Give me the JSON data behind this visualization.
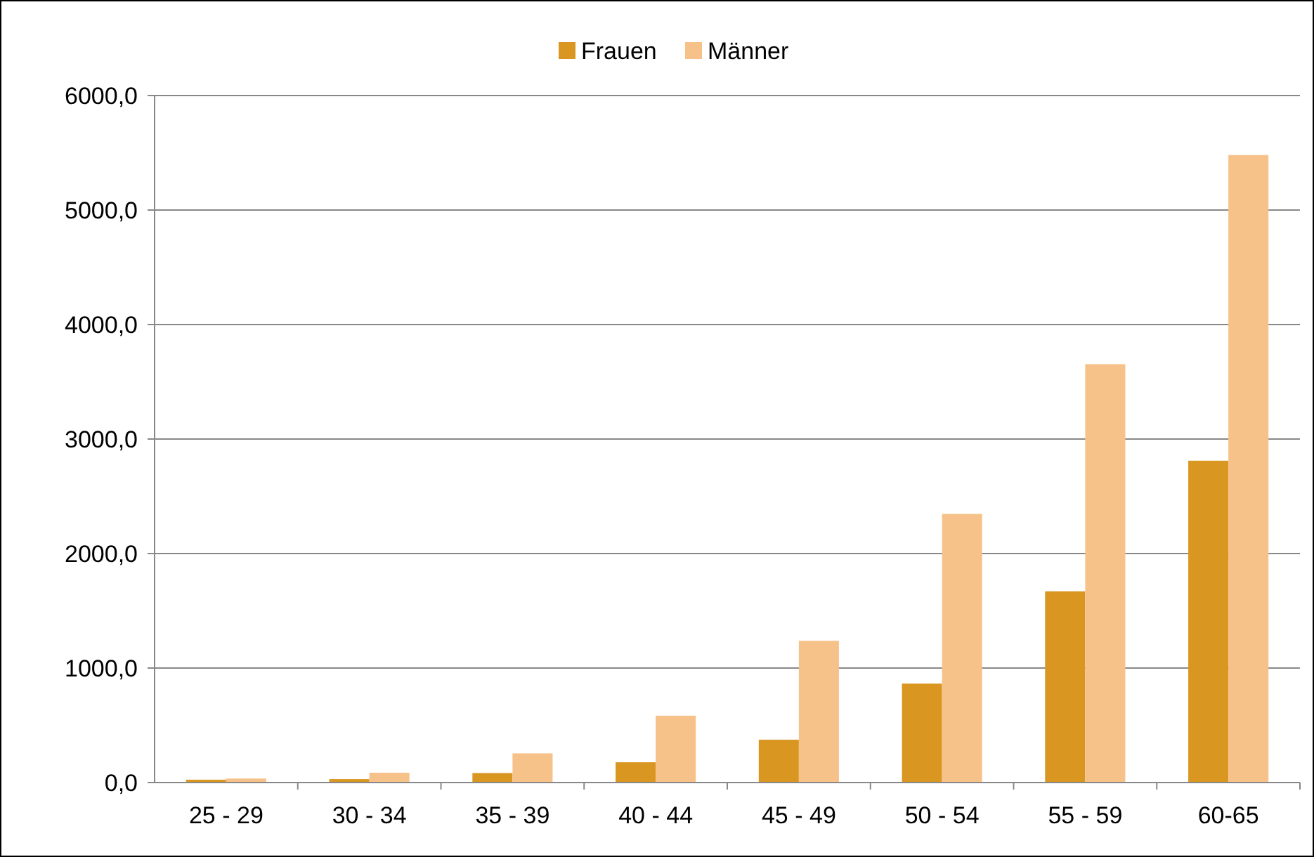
{
  "chart_data": {
    "type": "bar",
    "categories": [
      "25 - 29",
      "30 - 34",
      "35 - 39",
      "40 - 44",
      "45 - 49",
      "50 - 54",
      "55 - 59",
      "60-65"
    ],
    "series": [
      {
        "name": "Frauen",
        "color": "#d99620",
        "values": [
          25,
          30,
          83,
          177,
          374,
          864,
          1670,
          2811
        ]
      },
      {
        "name": "Männer",
        "color": "#f7c289",
        "values": [
          35,
          86,
          255,
          584,
          1238,
          2346,
          3654,
          5480
        ]
      }
    ],
    "ylim": [
      0,
      6000
    ],
    "yticks": [
      {
        "value": 0,
        "label": "0,0"
      },
      {
        "value": 1000,
        "label": "1000,0"
      },
      {
        "value": 2000,
        "label": "2000,0"
      },
      {
        "value": 3000,
        "label": "3000,0"
      },
      {
        "value": 4000,
        "label": "4000,0"
      },
      {
        "value": 5000,
        "label": "5000,0"
      },
      {
        "value": 6000,
        "label": "6000,0"
      }
    ],
    "grid": "y",
    "legend": "top"
  }
}
